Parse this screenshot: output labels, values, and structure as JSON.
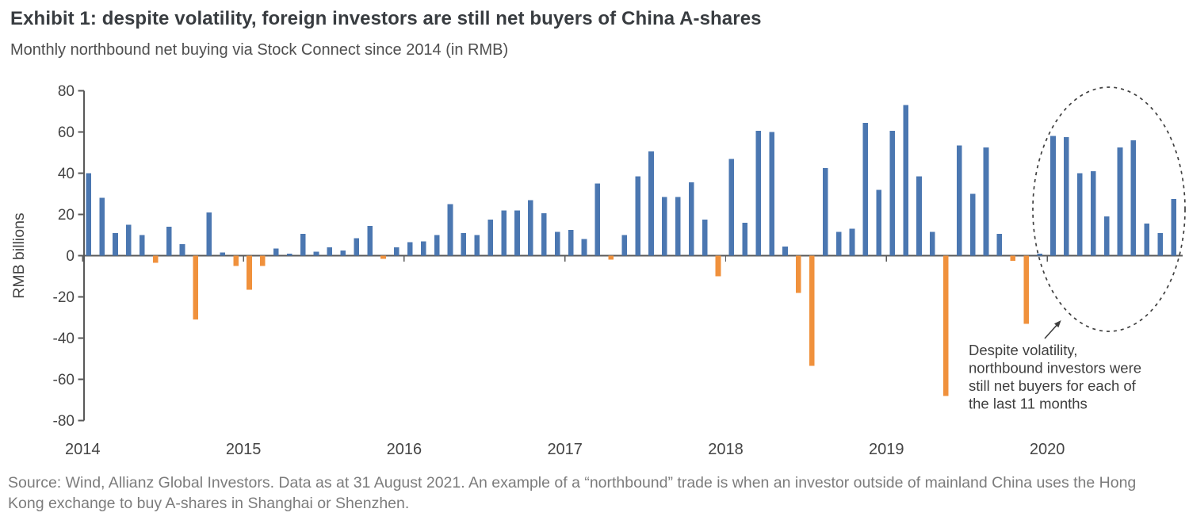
{
  "header": {
    "title": "Exhibit 1: despite volatility, foreign investors are still net buyers of China A-shares",
    "subtitle": "Monthly northbound net buying via Stock Connect since 2014 (in RMB)"
  },
  "chart_data": {
    "type": "bar",
    "title": "Exhibit 1: despite volatility, foreign investors are still net buyers of China A-shares",
    "subtitle": "Monthly northbound net buying via Stock Connect since 2014 (in RMB)",
    "xlabel": "",
    "ylabel": "RMB billions",
    "ylim": [
      -80,
      80
    ],
    "ytick_interval": 20,
    "grid": false,
    "legend": "none",
    "x_tick_labels": [
      "2014",
      "2015",
      "2016",
      "2017",
      "2018",
      "2019",
      "2020"
    ],
    "x_tick_month_indices": [
      0,
      12,
      24,
      36,
      48,
      60,
      72
    ],
    "months": [
      "2014-11",
      "2014-12",
      "2015-01",
      "2015-02",
      "2015-03",
      "2015-04",
      "2015-05",
      "2015-06",
      "2015-07",
      "2015-08",
      "2015-09",
      "2015-10",
      "2015-11",
      "2015-12",
      "2016-01",
      "2016-02",
      "2016-03",
      "2016-04",
      "2016-05",
      "2016-06",
      "2016-07",
      "2016-08",
      "2016-09",
      "2016-10",
      "2016-11",
      "2016-12",
      "2017-01",
      "2017-02",
      "2017-03",
      "2017-04",
      "2017-05",
      "2017-06",
      "2017-07",
      "2017-08",
      "2017-09",
      "2017-10",
      "2017-11",
      "2017-12",
      "2018-01",
      "2018-02",
      "2018-03",
      "2018-04",
      "2018-05",
      "2018-06",
      "2018-07",
      "2018-08",
      "2018-09",
      "2018-10",
      "2018-11",
      "2018-12",
      "2019-01",
      "2019-02",
      "2019-03",
      "2019-04",
      "2019-05",
      "2019-06",
      "2019-07",
      "2019-08",
      "2019-09",
      "2019-10",
      "2019-11",
      "2019-12",
      "2020-01",
      "2020-02",
      "2020-03",
      "2020-04",
      "2020-05",
      "2020-06",
      "2020-07",
      "2020-08",
      "2020-09",
      "2020-10",
      "2020-11",
      "2020-12",
      "2021-01",
      "2021-02",
      "2021-03",
      "2021-04",
      "2021-05",
      "2021-06",
      "2021-07",
      "2021-08"
    ],
    "values": [
      40,
      28,
      11,
      15,
      10,
      -3.5,
      14,
      5.5,
      -31,
      21,
      1.5,
      -5,
      -16.5,
      -5,
      3.5,
      1,
      10.5,
      2,
      4,
      2.5,
      8.5,
      14.5,
      -1.5,
      4,
      6.5,
      7,
      10,
      25,
      11,
      10,
      17.5,
      22,
      22,
      27,
      20.5,
      11.5,
      12.5,
      8,
      35,
      -2,
      10,
      38.5,
      50.5,
      28.5,
      28.5,
      35.5,
      17.5,
      -10,
      47,
      16,
      60.5,
      60,
      4.5,
      -18,
      -53.5,
      42.5,
      11.5,
      13,
      64.5,
      32,
      60.5,
      73,
      38.5,
      11.5,
      -68,
      53.5,
      30,
      52.5,
      10.5,
      -2.5,
      -33,
      1,
      58,
      57.5,
      40,
      41,
      19,
      52.5,
      56,
      15.5,
      11,
      27.5
    ],
    "colors": {
      "positive": "#4B77B1",
      "negative": "#F0913C",
      "axis": "#595959",
      "tick_text": "#454545",
      "annotation_text": "#3f3f3f"
    },
    "annotation": {
      "text": "Despite volatility, northbound investors were still net buyers for each of the last 11 months",
      "lines": [
        "Despite volatility,",
        "northbound investors were",
        "still net buyers for each of",
        "the last 11 months"
      ],
      "highlight_months": [
        "2020-10",
        "2021-08"
      ]
    }
  },
  "footer": {
    "source_text": "Source: Wind, Allianz Global Investors. Data as at 31 August 2021. An example of a “northbound” trade is when an investor outside of mainland China uses the Hong Kong exchange to buy A-shares in Shanghai or Shenzhen."
  }
}
